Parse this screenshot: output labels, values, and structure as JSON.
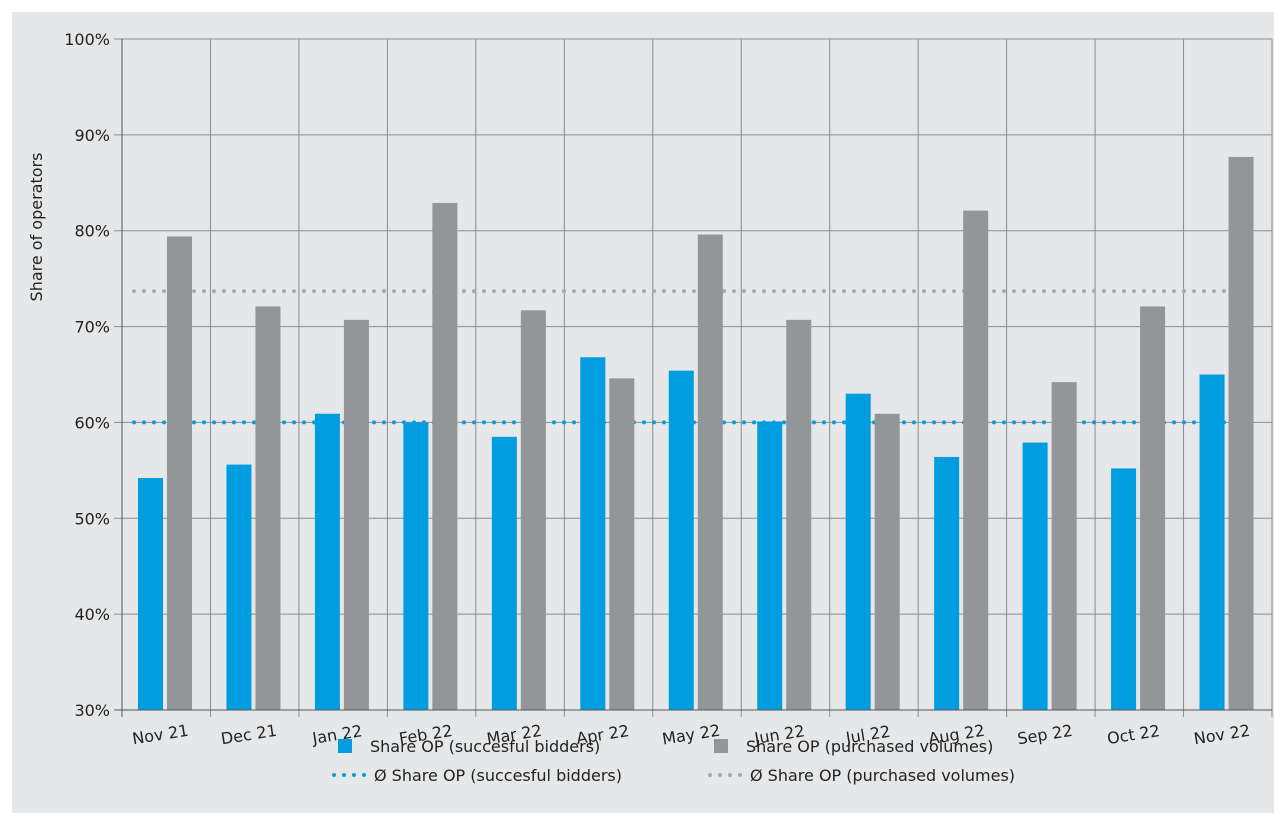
{
  "chart_data": {
    "type": "bar",
    "title": "",
    "xlabel": "",
    "ylabel": "Share of operators",
    "ylim": [
      30,
      100
    ],
    "yticks": [
      "30%",
      "40%",
      "50%",
      "60%",
      "70%",
      "80%",
      "90%",
      "100%"
    ],
    "grid": true,
    "categories": [
      "Nov 21",
      "Dec 21",
      "Jan 22",
      "Feb 22",
      "Mar 22",
      "Apr 22",
      "May 22",
      "Jun 22",
      "Jul 22",
      "Aug 22",
      "Sep 22",
      "Oct 22",
      "Nov 22"
    ],
    "series": [
      {
        "name": "Share OP (succesful bidders)",
        "color": "#009ee0",
        "values": [
          54.2,
          55.6,
          60.9,
          60.0,
          58.5,
          66.8,
          65.4,
          60.1,
          63.0,
          56.4,
          57.9,
          55.2,
          65.0
        ]
      },
      {
        "name": "Share OP (purchased volumes)",
        "color": "#939598",
        "values": [
          79.4,
          72.1,
          70.7,
          82.9,
          71.7,
          64.6,
          79.6,
          70.7,
          60.9,
          82.1,
          64.2,
          72.1,
          87.7
        ]
      }
    ],
    "averages": [
      {
        "name": "Ø Share OP (succesful bidders)",
        "color": "#009ee0",
        "value": 60.0
      },
      {
        "name": "Ø Share OP (purchased volumes)",
        "color": "#a7a9ac",
        "value": 73.7
      }
    ],
    "legend_position": "bottom"
  }
}
